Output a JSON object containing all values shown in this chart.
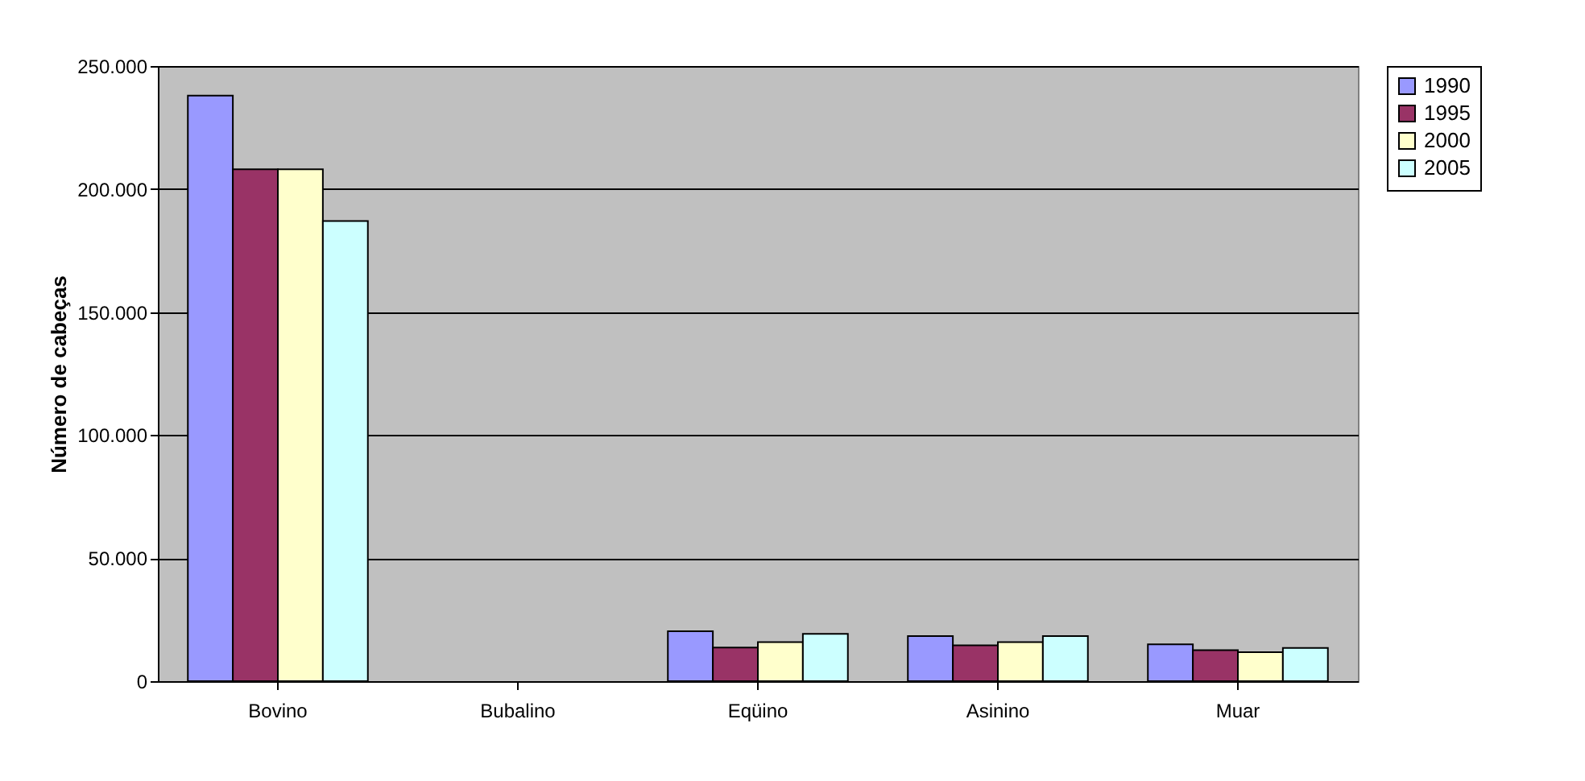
{
  "chart_data": {
    "type": "bar",
    "ylabel": "Número de cabeças",
    "categories": [
      "Bovino",
      "Bubalino",
      "Eqüino",
      "Asinino",
      "Muar"
    ],
    "series": [
      {
        "name": "1990",
        "color": "#9999ff",
        "values": [
          238000,
          null,
          20300,
          18300,
          15000
        ]
      },
      {
        "name": "1995",
        "color": "#993366",
        "values": [
          208000,
          null,
          13700,
          14600,
          12600
        ]
      },
      {
        "name": "2000",
        "color": "#ffffcc",
        "values": [
          208000,
          null,
          15900,
          15900,
          11800
        ]
      },
      {
        "name": "2005",
        "color": "#ccffff",
        "values": [
          187000,
          null,
          19200,
          18300,
          13500
        ]
      }
    ],
    "ylim": [
      0,
      250000
    ],
    "yticks": [
      {
        "value": 0,
        "label": "0"
      },
      {
        "value": 50000,
        "label": "50.000"
      },
      {
        "value": 100000,
        "label": "100.000"
      },
      {
        "value": 150000,
        "label": "150.000"
      },
      {
        "value": 200000,
        "label": "200.000"
      },
      {
        "value": 250000,
        "label": "250.000"
      }
    ],
    "grid": "y",
    "legend": "right"
  }
}
